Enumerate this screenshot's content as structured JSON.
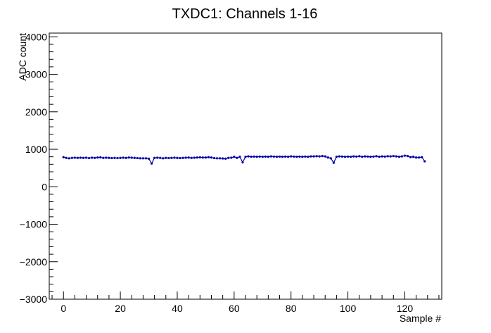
{
  "chart_data": {
    "type": "line",
    "title": "TXDC1: Channels 1-16",
    "xlabel": "Sample #",
    "ylabel": "ADC count",
    "xlim": [
      -5,
      133
    ],
    "ylim": [
      -3000,
      4100
    ],
    "xticks": [
      0,
      20,
      40,
      60,
      80,
      100,
      120
    ],
    "yticks": [
      -3000,
      -2000,
      -1000,
      0,
      1000,
      2000,
      3000,
      4000
    ],
    "grid": false,
    "series": [
      {
        "color": "#0000aa",
        "marker": "circle",
        "x": [
          0,
          1,
          2,
          3,
          4,
          5,
          6,
          7,
          8,
          9,
          10,
          11,
          12,
          13,
          14,
          15,
          16,
          17,
          18,
          19,
          20,
          21,
          22,
          23,
          24,
          25,
          26,
          27,
          28,
          29,
          30,
          31,
          32,
          33,
          34,
          35,
          36,
          37,
          38,
          39,
          40,
          41,
          42,
          43,
          44,
          45,
          46,
          47,
          48,
          49,
          50,
          51,
          52,
          53,
          54,
          55,
          56,
          57,
          58,
          59,
          60,
          61,
          62,
          63,
          64,
          65,
          66,
          67,
          68,
          69,
          70,
          71,
          72,
          73,
          74,
          75,
          76,
          77,
          78,
          79,
          80,
          81,
          82,
          83,
          84,
          85,
          86,
          87,
          88,
          89,
          90,
          91,
          92,
          93,
          94,
          95,
          96,
          97,
          98,
          99,
          100,
          101,
          102,
          103,
          104,
          105,
          106,
          107,
          108,
          109,
          110,
          111,
          112,
          113,
          114,
          115,
          116,
          117,
          118,
          119,
          120,
          121,
          122,
          123,
          124,
          125,
          126,
          127
        ],
        "y": [
          790,
          770,
          760,
          770,
          775,
          770,
          775,
          770,
          775,
          765,
          775,
          770,
          780,
          785,
          770,
          775,
          770,
          765,
          770,
          765,
          770,
          775,
          770,
          780,
          775,
          770,
          765,
          760,
          760,
          760,
          750,
          620,
          770,
          775,
          770,
          760,
          770,
          765,
          770,
          775,
          770,
          765,
          770,
          775,
          780,
          770,
          775,
          780,
          785,
          780,
          780,
          790,
          780,
          765,
          760,
          760,
          755,
          750,
          770,
          775,
          800,
          770,
          800,
          650,
          800,
          810,
          800,
          805,
          800,
          805,
          800,
          805,
          800,
          810,
          805,
          800,
          805,
          800,
          805,
          800,
          810,
          805,
          800,
          805,
          800,
          805,
          800,
          810,
          810,
          815,
          810,
          820,
          810,
          780,
          760,
          640,
          800,
          810,
          805,
          800,
          805,
          800,
          810,
          805,
          815,
          800,
          810,
          805,
          800,
          805,
          815,
          800,
          810,
          805,
          815,
          810,
          820,
          810,
          800,
          810,
          830,
          820,
          790,
          800,
          780,
          780,
          790,
          680
        ]
      }
    ]
  }
}
